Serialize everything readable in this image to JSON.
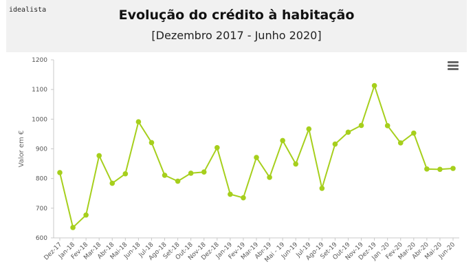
{
  "header": {
    "brand": "idealista",
    "title": "Evolução do crédito à habitação",
    "subtitle": "[Dezembro 2017 - Junho 2020]"
  },
  "menu_icon": "hamburger-menu-icon",
  "colors": {
    "series": "#a6cf1c",
    "header_bg": "#f1f1f1",
    "axis": "#c8c8c8"
  },
  "chart_data": {
    "type": "line",
    "title": "Evolução do crédito à habitação",
    "subtitle": "[Dezembro 2017 - Junho 2020]",
    "xlabel": "",
    "ylabel": "Valor em €",
    "ylim": [
      600,
      1200
    ],
    "yticks": [
      600,
      700,
      800,
      900,
      1000,
      1100,
      1200
    ],
    "grid": false,
    "categories": [
      "Dez-17",
      "Jan-18",
      "Fev-18",
      "Mar-18",
      "Abr-18",
      "Mai-18",
      "Jun-18",
      "Jul-18",
      "Ago-18",
      "Set-18",
      "Out-18",
      "Nov-18",
      "Dez-18",
      "Jan-19",
      "Fev-19",
      "Mar-19",
      "Abr-19",
      "Mai - 19",
      "Jun-19",
      "Jul-19",
      "Ago-19",
      "Set-19",
      "Out-19",
      "Nov-19",
      "Dez-19",
      "Jan -20",
      "Fev-20",
      "Mar-20",
      "Abr-20",
      "Mai-20",
      "Jun-20"
    ],
    "series": [
      {
        "values": [
          820,
          635,
          677,
          877,
          784,
          816,
          991,
          921,
          811,
          791,
          818,
          822,
          904,
          747,
          735,
          871,
          804,
          928,
          849,
          967,
          767,
          916,
          956,
          979,
          1113,
          978,
          920,
          953,
          832,
          831,
          834
        ]
      }
    ]
  }
}
